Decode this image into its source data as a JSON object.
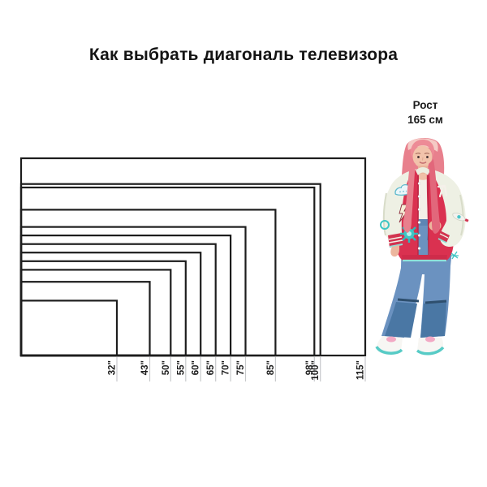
{
  "title": "Как выбрать диагональ телевизора",
  "person": {
    "height_label_line1": "Рост",
    "height_label_line2": "165 см",
    "height_cm": 165
  },
  "colors": {
    "background": "#ffffff",
    "outline": "#1d1d1d",
    "tick_line": "#c7c9cb",
    "label_text": "#1c1c1c",
    "jacket_red": "#da3150",
    "jacket_red_dark": "#b72744",
    "sleeve_cream": "#eef0e4",
    "mint_trim": "#8fe0d8",
    "denim_blue": "#6b92c0",
    "denim_dark": "#4a77a4",
    "teal_accent": "#3fc6c4",
    "hair_pink": "#e8808d",
    "skin": "#f2c3ab",
    "sneaker_pink": "#f2a9c4"
  },
  "chart_data": {
    "type": "nested-rectangles",
    "description": "Сравнение диагоналей телевизоров: вложенные прямоугольники 16:9 с общим левым нижним углом; ширина пропорциональна диагонали; рост человека 165 см как масштаб",
    "unit": "inch",
    "diagonals_in": [
      32,
      43,
      50,
      55,
      60,
      65,
      70,
      75,
      85,
      98,
      100,
      115
    ],
    "labels": [
      "32\"",
      "43\"",
      "50\"",
      "55\"",
      "60\"",
      "65\"",
      "70\"",
      "75\"",
      "85\"",
      "98\"",
      "100\"",
      "115\""
    ],
    "reference": {
      "label": "Рост 165 см",
      "value_cm": 165
    }
  }
}
